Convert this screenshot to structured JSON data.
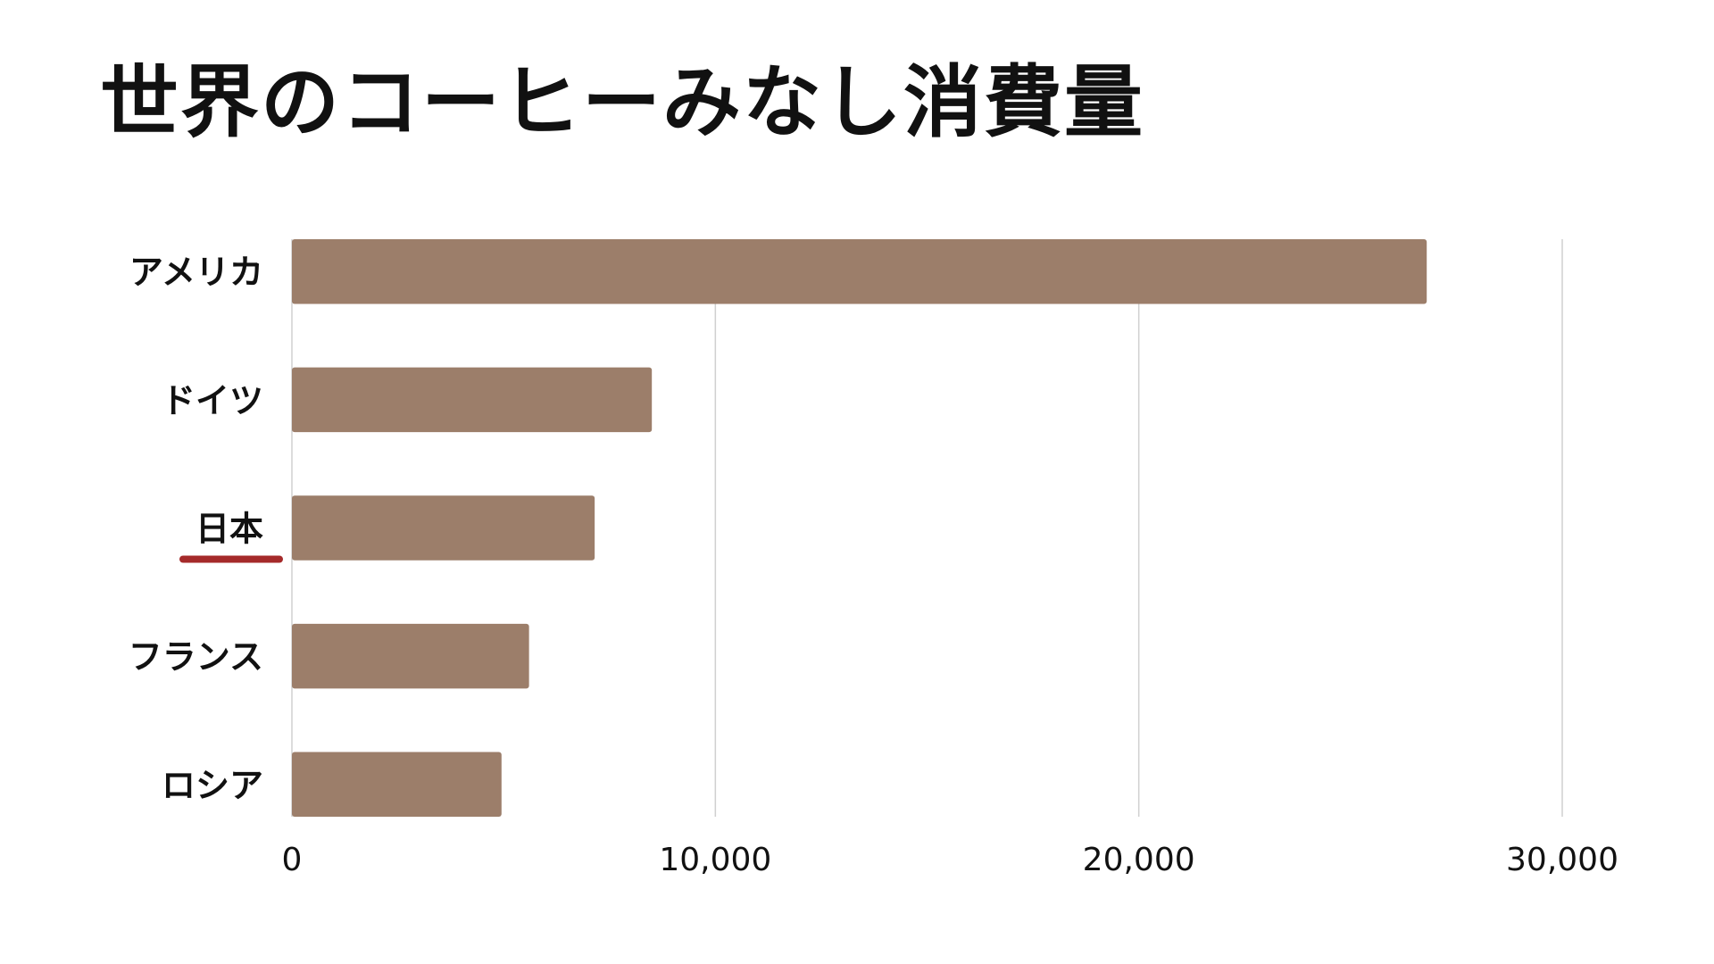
{
  "chart_data": {
    "type": "bar",
    "orientation": "horizontal",
    "title": "世界のコーヒーみなし消費量",
    "categories": [
      "アメリカ",
      "ドイツ",
      "日本",
      "フランス",
      "ロシア"
    ],
    "values": [
      26800,
      8500,
      7150,
      5600,
      4950
    ],
    "highlighted_category": "日本",
    "xlabel": "",
    "ylabel": "",
    "xlim": [
      0,
      30000
    ],
    "x_ticks": [
      0,
      10000,
      20000,
      30000
    ],
    "x_tick_labels": [
      "0",
      "10,000",
      "20,000",
      "30,000"
    ],
    "grid": true,
    "legend": "none",
    "bar_color": "#9c7e6a",
    "highlight_color": "#a52a2a",
    "grid_color": "#d0d0d0"
  }
}
